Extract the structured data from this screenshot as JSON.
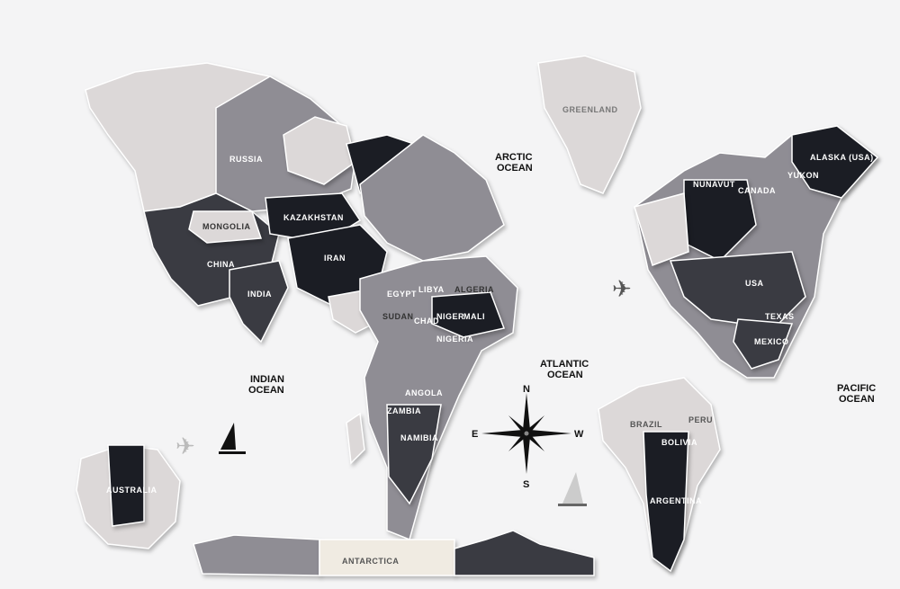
{
  "colors": {
    "background": "#f4f4f5",
    "light": "#dcd8d8",
    "mid": "#8f8d94",
    "dark": "#3a3b42",
    "black": "#1b1d24",
    "water": "#2aa6d6"
  },
  "countries": {
    "russia": "RUSSIA",
    "china": "CHINA",
    "mongolia": "MONGOLIA",
    "kazakhstan": "KAZAKHSTAN",
    "iran": "IRAN",
    "india": "INDIA",
    "egypt": "EGYPT",
    "libya": "LIBYA",
    "algeria": "ALGERIA",
    "mali": "MALI",
    "niger": "NIGER",
    "chad": "CHAD",
    "sudan": "SUDAN",
    "nigeria": "NIGERIA",
    "angola": "ANGOLA",
    "namibia": "NAMIBIA",
    "zambia": "ZAMBIA",
    "australia": "AUSTRALIA",
    "antarctica": "ANTARCTICA",
    "greenland": "GREENLAND",
    "canada": "CANADA",
    "nunavut": "NUNAVUT",
    "alaska": "ALASKA (USA)",
    "yukon": "YUKON",
    "usa": "USA",
    "texas": "TEXAS",
    "mexico": "MEXICO",
    "brazil": "BRAZIL",
    "peru": "PERU",
    "bolivia": "BOLIVIA",
    "argentina": "ARGENTINA"
  },
  "oceans": {
    "arctic": [
      "ARCTIC",
      "OCEAN"
    ],
    "atlantic": [
      "ATLANTIC",
      "OCEAN"
    ],
    "indian": [
      "INDIAN",
      "OCEAN"
    ],
    "pacific": [
      "PACIFIC",
      "OCEAN"
    ]
  },
  "compass": {
    "n": "N",
    "s": "S",
    "e": "E",
    "w": "W"
  }
}
